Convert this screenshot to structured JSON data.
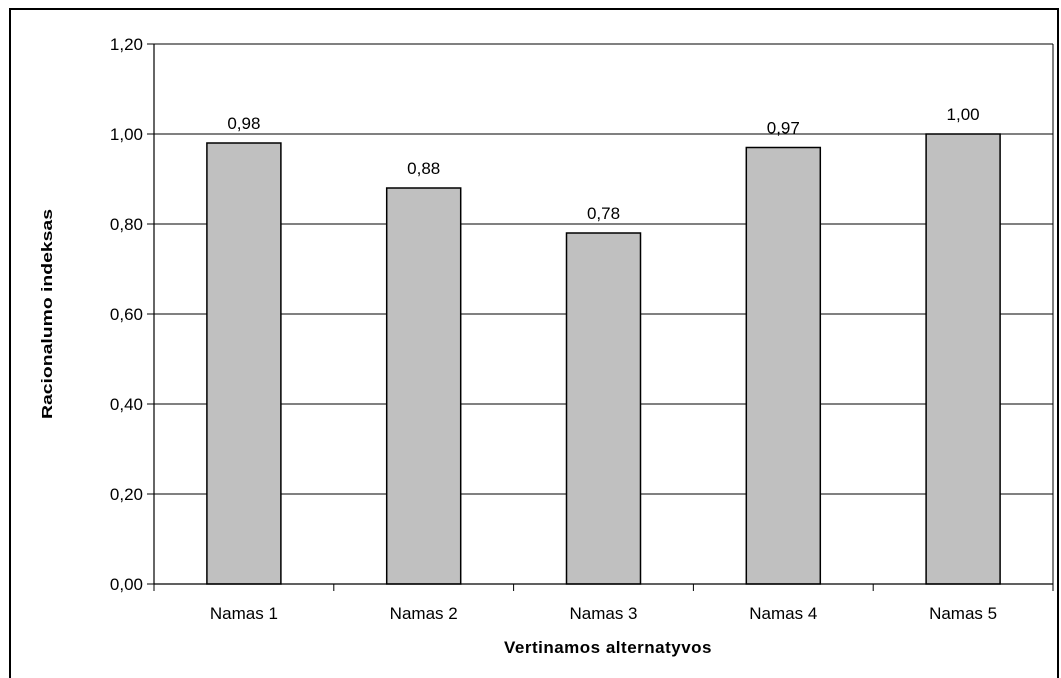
{
  "chart_data": {
    "type": "bar",
    "categories": [
      "Namas 1",
      "Namas 2",
      "Namas 3",
      "Namas 4",
      "Namas 5"
    ],
    "values": [
      0.98,
      0.88,
      0.78,
      0.97,
      1.0
    ],
    "value_labels": [
      "0,98",
      "0,88",
      "0,78",
      "0,97",
      "1,00"
    ],
    "xlabel": "Vertinamos alternatyvos",
    "ylabel": "Racionalumo indeksas",
    "ylim": [
      0,
      1.2
    ],
    "yticks": [
      0,
      0.2,
      0.4,
      0.6,
      0.8,
      1.0,
      1.2
    ],
    "ytick_labels": [
      "0,00",
      "0,20",
      "0,40",
      "0,60",
      "0,80",
      "1,00",
      "1,20"
    ],
    "grid": true,
    "legend": "none",
    "colors": {
      "bar_fill": "#c0c0c0",
      "bar_stroke": "#000000",
      "grid": "#000000"
    }
  }
}
